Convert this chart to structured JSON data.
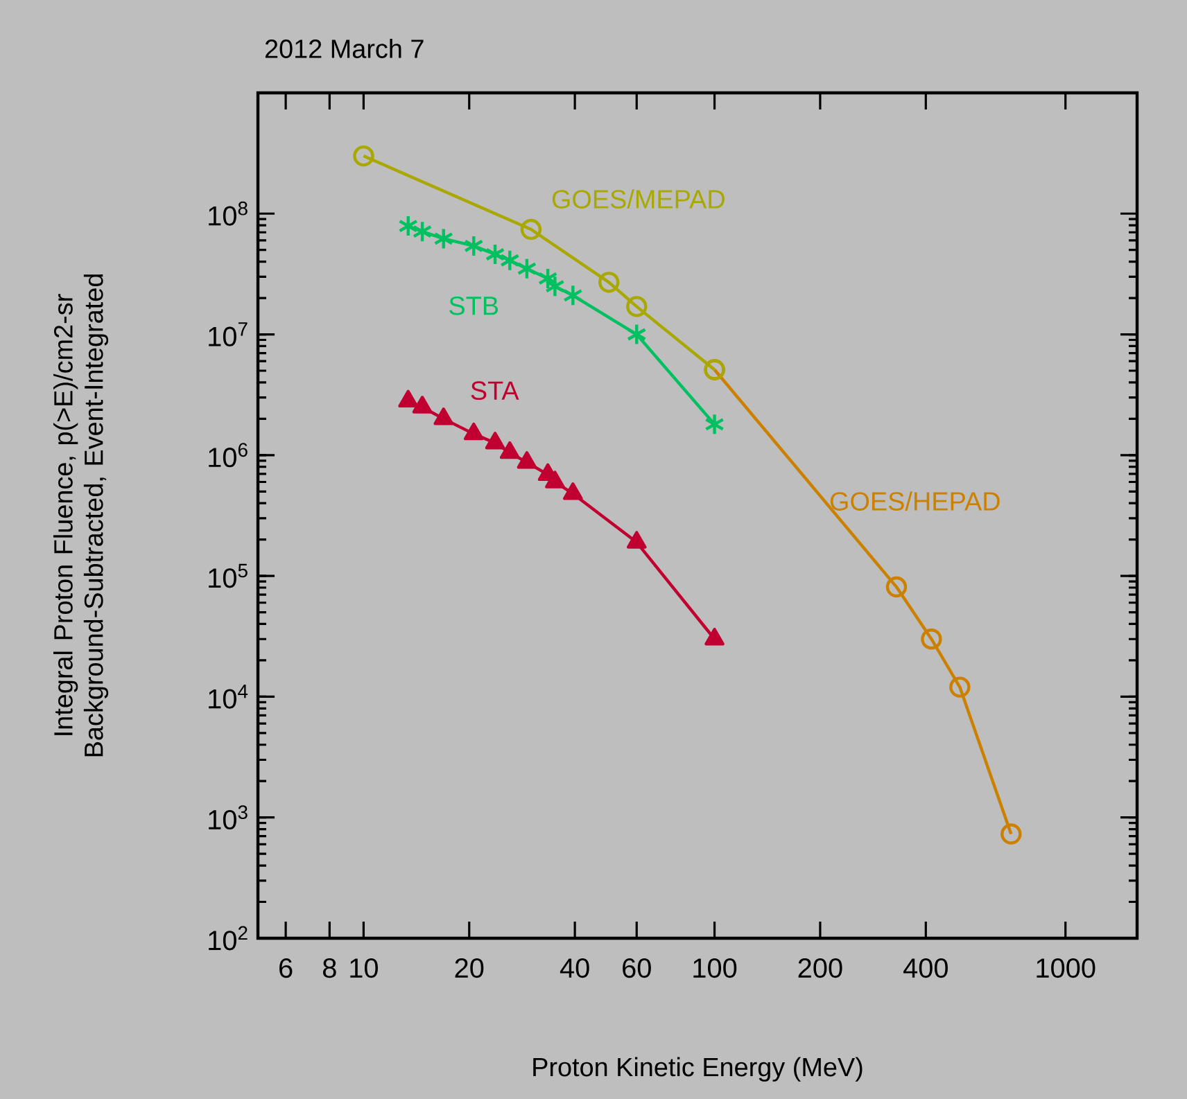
{
  "chart_data": {
    "type": "line",
    "title": "2012 March 7",
    "xlabel": "Proton Kinetic Energy (MeV)",
    "ylabel": "Integral Proton Fluence, p(>E)/cm2-sr Background-Subtracted, Event-Integrated",
    "log": "xy",
    "legend": false,
    "xlim": [
      5,
      1600
    ],
    "ylim": [
      100,
      1000000000
    ],
    "xticks": [
      6,
      8,
      10,
      20,
      40,
      60,
      100,
      200,
      400,
      1000
    ],
    "yticks": [
      {
        "value": 100,
        "label": "10$^{2}$"
      },
      {
        "value": 1000,
        "label": "10$^{3}$"
      },
      {
        "value": 10000,
        "label": "10$^{4}$"
      },
      {
        "value": 100000,
        "label": "10$^{5}$"
      },
      {
        "value": 1000000,
        "label": "10$^{6}$"
      },
      {
        "value": 10000000,
        "label": "10$^{7}$"
      },
      {
        "value": 100000000,
        "label": "10$^{8}$"
      }
    ],
    "series": [
      {
        "name": "GOES/MEPAD",
        "color": "#a8a800",
        "marker": "circle",
        "x": [
          10,
          30,
          50,
          60,
          100
        ],
        "values": [
          300000000,
          74000000,
          27000000,
          17000000,
          5100000
        ]
      },
      {
        "name": "GOES/HEPAD",
        "color": "#cc8000",
        "marker": "circle",
        "x": [
          100,
          330,
          415,
          500,
          700
        ],
        "values": [
          5100000,
          81000,
          30000,
          12000,
          730
        ]
      },
      {
        "name": "STB",
        "color": "#00c060",
        "marker": "cross",
        "x": [
          13.4,
          14.7,
          16.9,
          20.6,
          23.7,
          26.1,
          29.2,
          33.5,
          35.1,
          39.5,
          60,
          100
        ],
        "values": [
          79000000,
          71000000,
          62000000,
          54000000,
          46000000,
          41000000,
          35000000,
          29000000,
          25000000,
          21000000,
          10000000,
          1800000
        ]
      },
      {
        "name": "STA",
        "color": "#c00030",
        "marker": "triangle",
        "x": [
          13.4,
          14.7,
          16.9,
          20.6,
          23.7,
          26.1,
          29.2,
          33.5,
          35.1,
          39.5,
          60,
          100
        ],
        "values": [
          2800000,
          2500000,
          2000000,
          1500000,
          1260000,
          1050000,
          870000,
          690000,
          600000,
          480000,
          190000,
          30000
        ]
      }
    ]
  }
}
